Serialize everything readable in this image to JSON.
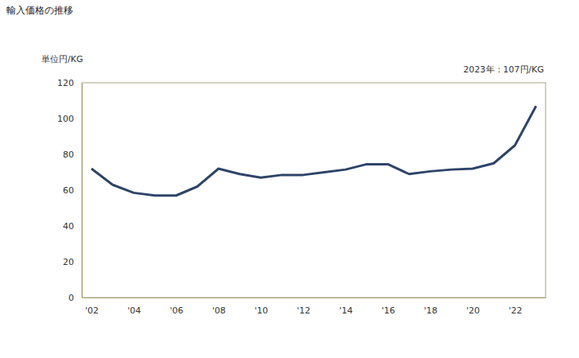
{
  "chart_data": {
    "type": "line",
    "title": "輸入価格の推移",
    "y_label": "単位円/KG",
    "annotation": "2023年：107円/KG",
    "x": [
      2002,
      2003,
      2004,
      2005,
      2006,
      2007,
      2008,
      2009,
      2010,
      2011,
      2012,
      2013,
      2014,
      2015,
      2016,
      2017,
      2018,
      2019,
      2020,
      2021,
      2022,
      2023
    ],
    "values": [
      72,
      63,
      58.5,
      57,
      57,
      62,
      72,
      69,
      67,
      68.5,
      68.5,
      70,
      71.5,
      74.5,
      74.5,
      69,
      70.5,
      71.5,
      72,
      75,
      85,
      107
    ],
    "color": "#2e4468",
    "xlim": [
      2001.55,
      2023.45
    ],
    "xticks": [
      {
        "value": 2002,
        "label": "'02"
      },
      {
        "value": 2004,
        "label": "'04"
      },
      {
        "value": 2006,
        "label": "'06"
      },
      {
        "value": 2008,
        "label": "'08"
      },
      {
        "value": 2010,
        "label": "'10"
      },
      {
        "value": 2012,
        "label": "'12"
      },
      {
        "value": 2014,
        "label": "'14"
      },
      {
        "value": 2016,
        "label": "'16"
      },
      {
        "value": 2018,
        "label": "'18"
      },
      {
        "value": 2020,
        "label": "'20"
      },
      {
        "value": 2022,
        "label": "'22"
      }
    ],
    "ylim": [
      0,
      120
    ],
    "yticks": [
      0,
      20,
      40,
      60,
      80,
      100,
      120
    ],
    "grid": false
  }
}
